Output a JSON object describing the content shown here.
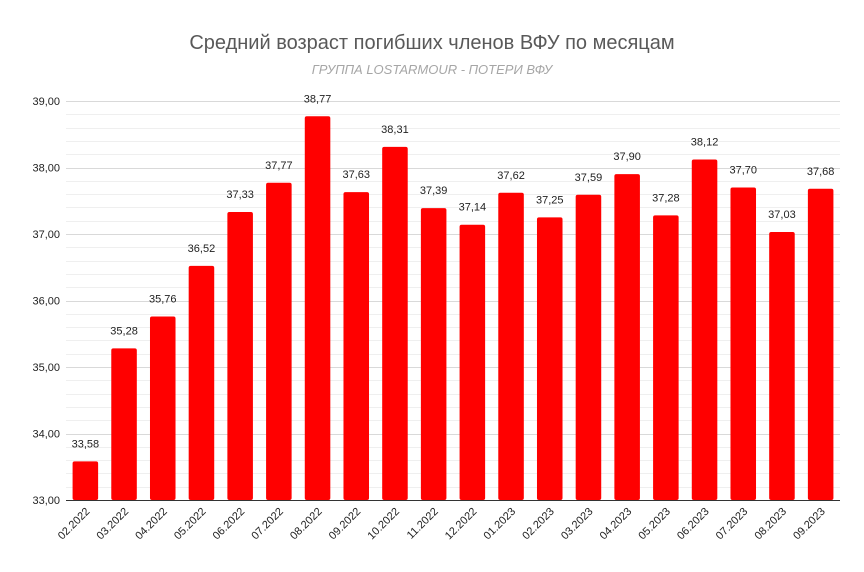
{
  "chart_data": {
    "type": "bar",
    "title": "Средний возраст погибших членов ВФУ по месяцам",
    "subtitle": "ГРУППА LOSTARMOUR - ПОТЕРИ ВФУ",
    "xlabel": "",
    "ylabel": "",
    "ylim": [
      33,
      39
    ],
    "yticks": [
      "33,00",
      "34,00",
      "35,00",
      "36,00",
      "37,00",
      "38,00",
      "39,00"
    ],
    "grid": true,
    "bar_color": "#ff0000",
    "categories": [
      "02.2022",
      "03.2022",
      "04.2022",
      "05.2022",
      "06.2022",
      "07.2022",
      "08.2022",
      "09.2022",
      "10.2022",
      "11.2022",
      "12.2022",
      "01.2023",
      "02.2023",
      "03.2023",
      "04.2023",
      "05.2023",
      "06.2023",
      "07.2023",
      "08.2023",
      "09.2023"
    ],
    "values": [
      33.58,
      35.28,
      35.76,
      36.52,
      37.33,
      37.77,
      38.77,
      37.63,
      38.31,
      37.39,
      37.14,
      37.62,
      37.25,
      37.59,
      37.9,
      37.28,
      38.12,
      37.7,
      37.03,
      37.68
    ],
    "value_labels": [
      "33,58",
      "35,28",
      "35,76",
      "36,52",
      "37,33",
      "37,77",
      "38,77",
      "37,63",
      "38,31",
      "37,39",
      "37,14",
      "37,62",
      "37,25",
      "37,59",
      "37,90",
      "37,28",
      "38,12",
      "37,70",
      "37,03",
      "37,68"
    ]
  }
}
